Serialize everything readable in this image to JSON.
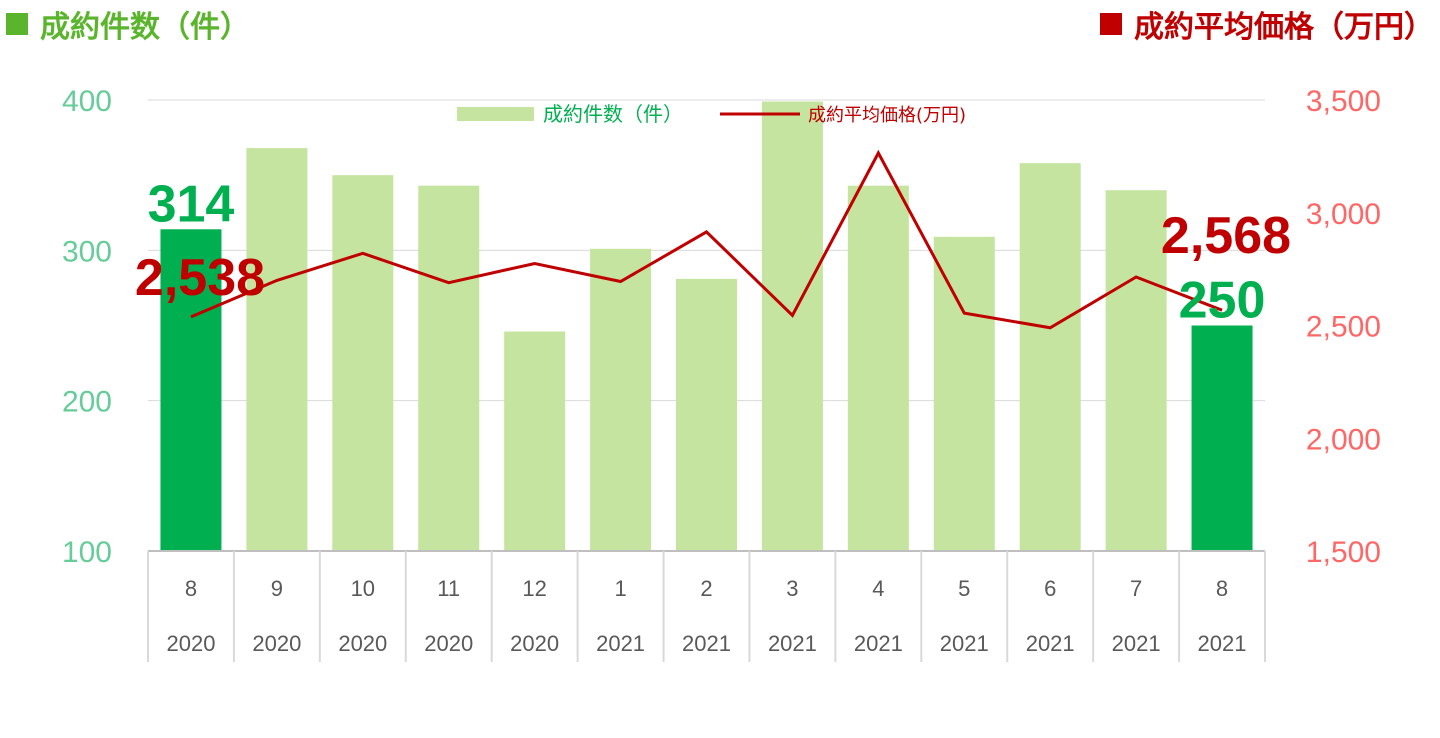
{
  "header": {
    "left_title": "成約件数（件）",
    "right_title": "成約平均価格（万円）"
  },
  "colors": {
    "bar_light": "#c5e49f",
    "bar_highlight": "#00b050",
    "line": "#c00000",
    "left_axis": "#66cc99",
    "right_axis": "#ff6666",
    "header_left": "#5ab52c",
    "header_right": "#c00000",
    "grid": "#d9d9d9"
  },
  "chart_data": {
    "type": "bar+line",
    "categories": [
      {
        "month": "8",
        "year": "2020"
      },
      {
        "month": "9",
        "year": "2020"
      },
      {
        "month": "10",
        "year": "2020"
      },
      {
        "month": "11",
        "year": "2020"
      },
      {
        "month": "12",
        "year": "2020"
      },
      {
        "month": "1",
        "year": "2021"
      },
      {
        "month": "2",
        "year": "2021"
      },
      {
        "month": "3",
        "year": "2021"
      },
      {
        "month": "4",
        "year": "2021"
      },
      {
        "month": "5",
        "year": "2021"
      },
      {
        "month": "6",
        "year": "2021"
      },
      {
        "month": "7",
        "year": "2021"
      },
      {
        "month": "8",
        "year": "2021"
      }
    ],
    "series": [
      {
        "name": "成約件数（件）",
        "type": "bar",
        "axis": "left",
        "values": [
          314,
          368,
          350,
          343,
          246,
          301,
          281,
          399,
          343,
          309,
          358,
          340,
          250
        ],
        "highlight_indices": [
          0,
          12
        ]
      },
      {
        "name": "成約平均価格(万円)",
        "type": "line",
        "axis": "right",
        "values": [
          2538,
          2700,
          2820,
          2690,
          2775,
          2695,
          2915,
          2545,
          3265,
          2555,
          2490,
          2715,
          2568
        ]
      }
    ],
    "left_axis": {
      "min": 100,
      "max": 400,
      "ticks": [
        "100",
        "200",
        "300",
        "400"
      ]
    },
    "right_axis": {
      "min": 1500,
      "max": 3500,
      "ticks": [
        "1,500",
        "2,000",
        "2,500",
        "3,000",
        "3,500"
      ]
    },
    "data_labels": {
      "bar_first": "314",
      "bar_last": "250",
      "line_first": "2,538",
      "line_last": "2,568"
    },
    "legend_placement": "top-center",
    "grid": true
  }
}
